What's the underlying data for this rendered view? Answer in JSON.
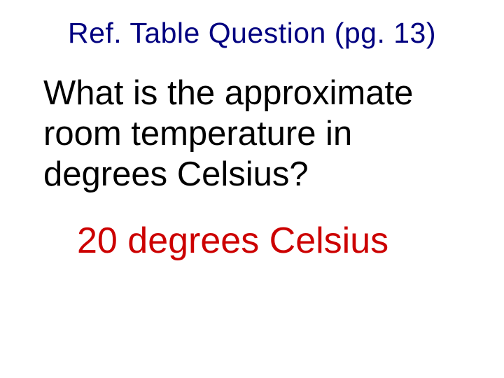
{
  "slide": {
    "title": {
      "text": "Ref. Table Question (pg. 13)",
      "color": "#000080",
      "fontsize": 41
    },
    "question": {
      "text": "What is the approximate room temperature in degrees Celsius?",
      "color": "#000000",
      "fontsize": 49
    },
    "answer": {
      "text": "20 degrees Celsius",
      "color": "#cc0000",
      "fontsize": 52
    },
    "background_color": "#ffffff"
  }
}
